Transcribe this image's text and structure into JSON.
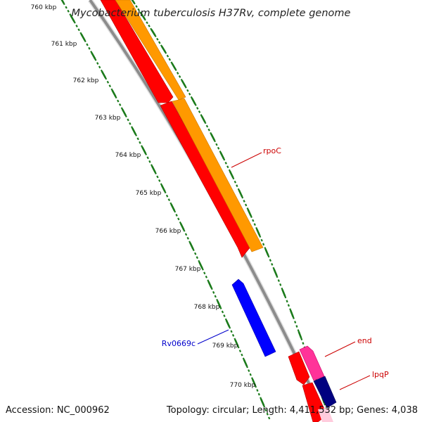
{
  "title": "Mycobacterium tuberculosis H37Rv, complete genome",
  "footer": {
    "accession": "Accession: NC_000962",
    "summary": "Topology: circular; Length: 4,411,532 bp; Genes: 4,038"
  },
  "ticks": [
    "760 kbp",
    "761 kbp",
    "762 kbp",
    "763 kbp",
    "764 kbp",
    "765 kbp",
    "766 kbp",
    "767 kbp",
    "768 kbp",
    "769 kbp",
    "770 kbp"
  ],
  "labels": [
    {
      "text": "rpoC",
      "color": "#cc0000"
    },
    {
      "text": "end",
      "color": "#cc0000"
    },
    {
      "text": "lpqP",
      "color": "#cc0000"
    },
    {
      "text": "Rv0669c",
      "color": "#0000cc"
    }
  ],
  "colors": {
    "tick": "#1a7a1a",
    "backbone": "#888888",
    "red": "#ff0000",
    "orange": "#ff9900",
    "blue": "#0000ff",
    "pink": "#ff3399",
    "navy": "#000080"
  }
}
